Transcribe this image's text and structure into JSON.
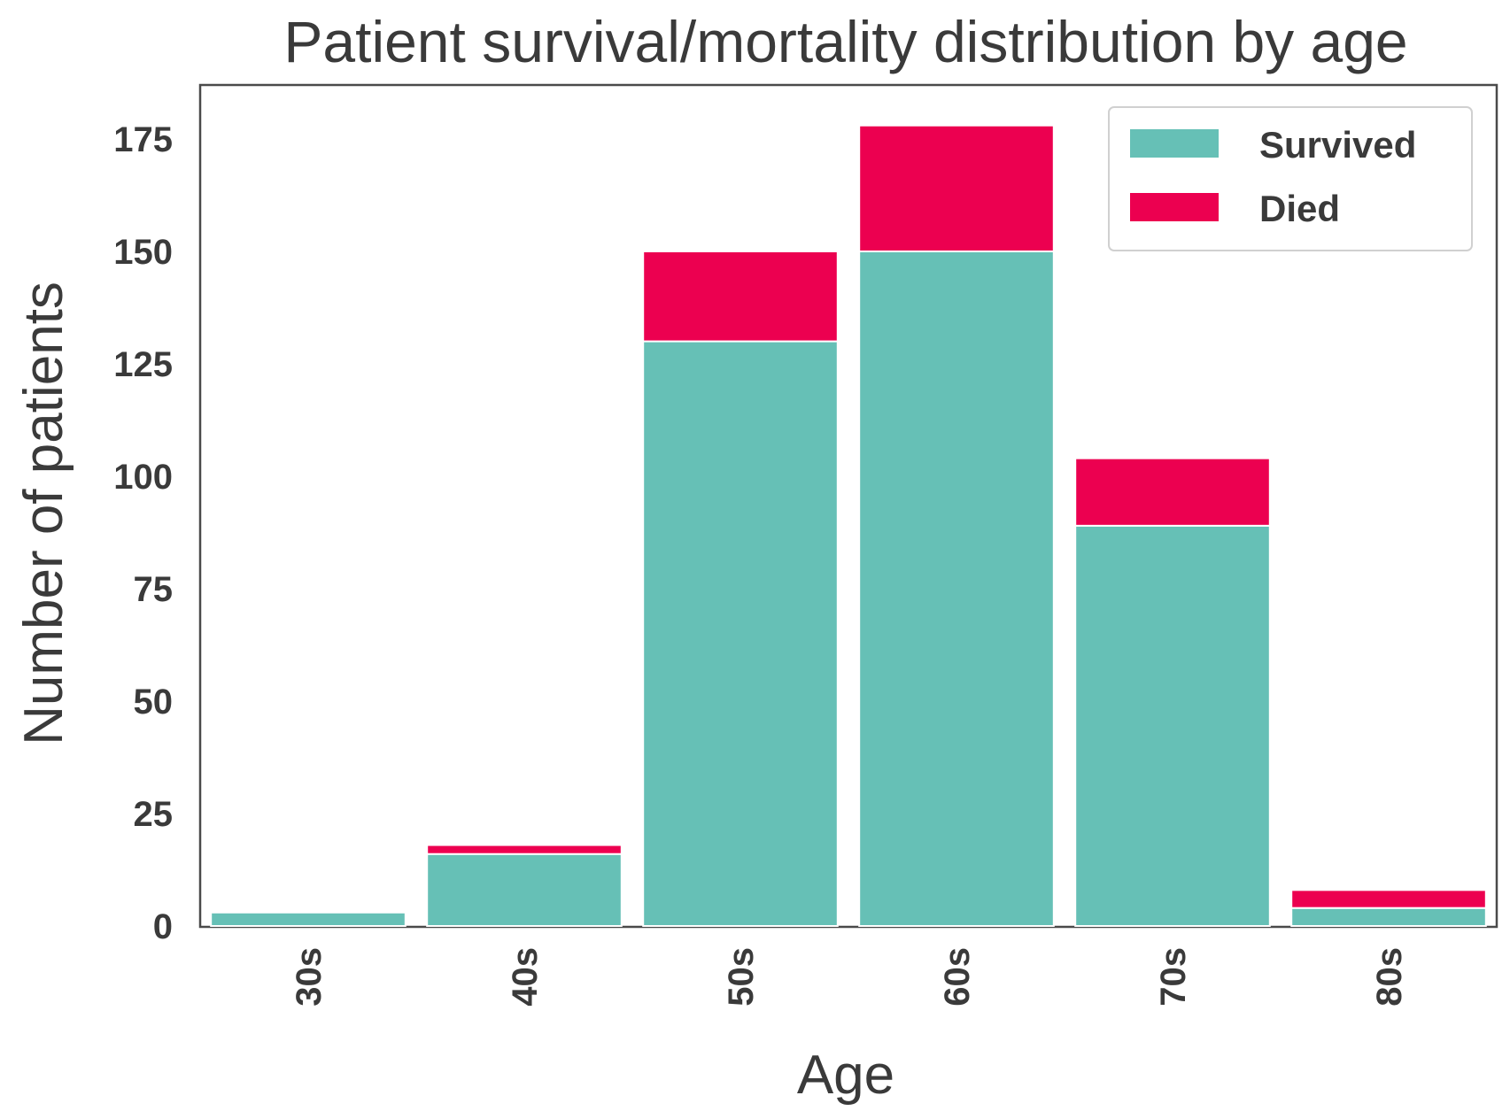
{
  "chart_data": {
    "type": "bar",
    "stacked": true,
    "title": "Patient survival/mortality distribution by age",
    "xlabel": "Age",
    "ylabel": "Number of patients",
    "categories": [
      "30s",
      "40s",
      "50s",
      "60s",
      "70s",
      "80s"
    ],
    "series": [
      {
        "name": "Survived",
        "color": "#66c0b6",
        "values": [
          3,
          16,
          130,
          150,
          89,
          4
        ]
      },
      {
        "name": "Died",
        "color": "#ec0050",
        "values": [
          0,
          2,
          20,
          28,
          15,
          4
        ]
      }
    ],
    "yticks": [
      0,
      25,
      50,
      75,
      100,
      125,
      150,
      175
    ],
    "ylim": [
      0,
      187
    ],
    "grid": false,
    "legend_position": "top-right"
  }
}
